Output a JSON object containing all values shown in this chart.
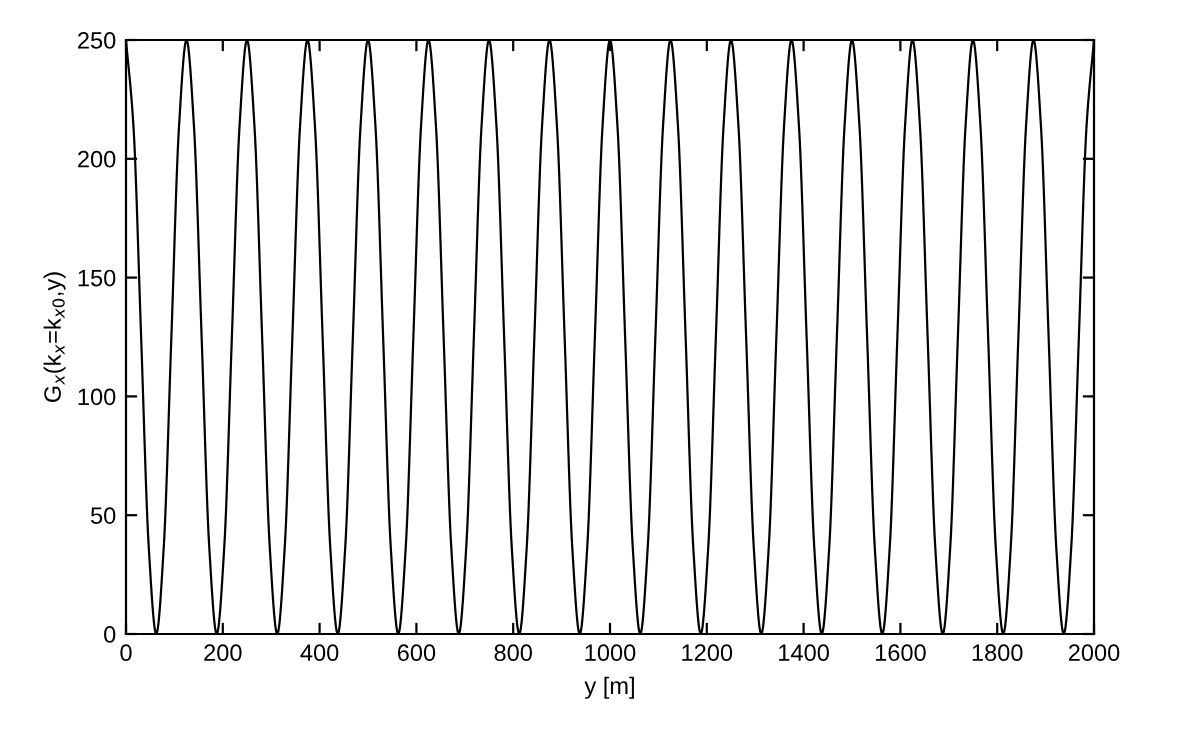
{
  "chart_data": {
    "type": "line",
    "xlabel": "y [m]",
    "ylabel": "G$_{x}$(k$_{x}$=k$_{x0}$,y)",
    "xlim": [
      0,
      2000
    ],
    "ylim": [
      0,
      250
    ],
    "xticks": [
      0,
      200,
      400,
      600,
      800,
      1000,
      1200,
      1400,
      1600,
      1800,
      2000
    ],
    "yticks": [
      0,
      50,
      100,
      150,
      200,
      250
    ],
    "grid": false,
    "legend": false,
    "marker": "none",
    "line_style": "solid",
    "series": [
      {
        "color": "#000000",
        "x": [
          0,
          15.625,
          31.25,
          46.875,
          62.5,
          78.125,
          93.75,
          109.375,
          125,
          140.625,
          156.25,
          171.875,
          187.5,
          203.125,
          218.75,
          234.375,
          250,
          265.625,
          281.25,
          296.875,
          312.5,
          328.125,
          343.75,
          359.375,
          375,
          390.625,
          406.25,
          421.875,
          437.5,
          453.125,
          468.75,
          484.375,
          500,
          515.625,
          531.25,
          546.875,
          562.5,
          578.125,
          593.75,
          609.375,
          625,
          640.625,
          656.25,
          671.875,
          687.5,
          703.125,
          718.75,
          734.375,
          750,
          765.625,
          781.25,
          796.875,
          812.5,
          828.125,
          843.75,
          859.375,
          875,
          890.625,
          906.25,
          921.875,
          937.5,
          953.125,
          968.75,
          984.375,
          1000,
          1015.625,
          1031.25,
          1046.875,
          1062.5,
          1078.125,
          1093.75,
          1109.375,
          1125,
          1140.625,
          1156.25,
          1171.875,
          1187.5,
          1203.125,
          1218.75,
          1234.375,
          1250,
          1265.625,
          1281.25,
          1296.875,
          1312.5,
          1328.125,
          1343.75,
          1359.375,
          1375,
          1390.625,
          1406.25,
          1421.875,
          1437.5,
          1453.125,
          1468.75,
          1484.375,
          1500,
          1515.625,
          1531.25,
          1546.875,
          1562.5,
          1578.125,
          1593.75,
          1609.375,
          1625,
          1640.625,
          1656.25,
          1671.875,
          1687.5,
          1703.125,
          1718.75,
          1734.375,
          1750,
          1765.625,
          1781.25,
          1796.875,
          1812.5,
          1828.125,
          1843.75,
          1859.375,
          1875,
          1890.625,
          1906.25,
          1921.875,
          1937.5,
          1953.125,
          1968.75,
          1984.375,
          2000
        ],
        "values": [
          250,
          213,
          125,
          37,
          0,
          37,
          125,
          213,
          250,
          213,
          125,
          37,
          0,
          37,
          125,
          213,
          250,
          213,
          125,
          37,
          0,
          37,
          125,
          213,
          250,
          213,
          125,
          37,
          0,
          37,
          125,
          213,
          250,
          213,
          125,
          37,
          0,
          37,
          125,
          213,
          250,
          213,
          125,
          37,
          0,
          37,
          125,
          213,
          250,
          213,
          125,
          37,
          0,
          37,
          125,
          213,
          250,
          213,
          125,
          37,
          0,
          37,
          125,
          213,
          250,
          213,
          125,
          37,
          0,
          37,
          125,
          213,
          250,
          213,
          125,
          37,
          0,
          37,
          125,
          213,
          250,
          213,
          125,
          37,
          0,
          37,
          125,
          213,
          250,
          213,
          125,
          37,
          0,
          37,
          125,
          213,
          250,
          213,
          125,
          37,
          0,
          37,
          125,
          213,
          250,
          213,
          125,
          37,
          0,
          37,
          125,
          213,
          250,
          213,
          125,
          37,
          0,
          37,
          125,
          213,
          250,
          213,
          125,
          37,
          0,
          37,
          125,
          213,
          250
        ]
      }
    ]
  }
}
